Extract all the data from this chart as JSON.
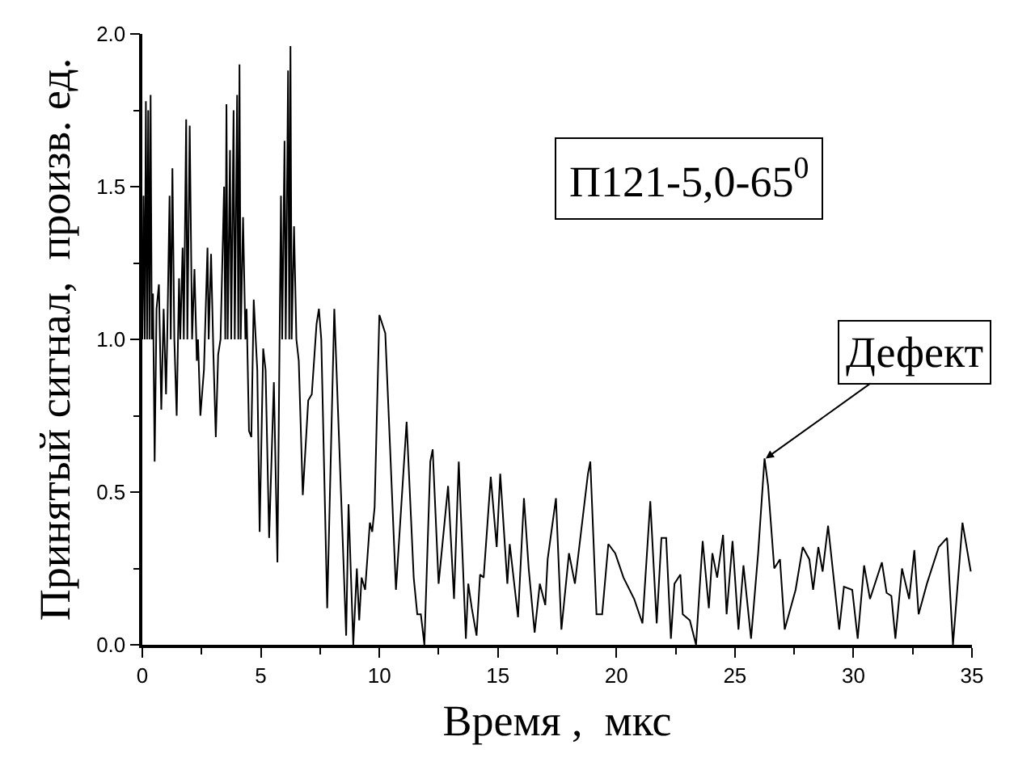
{
  "chart_data": {
    "type": "line",
    "xlabel": "Время ,  мкс",
    "ylabel": "Принятый сигнал,  произв. ед.",
    "xlim": [
      0,
      35
    ],
    "xticks": [
      0,
      5,
      10,
      15,
      20,
      25,
      30,
      35
    ],
    "ylim": [
      0,
      2.0
    ],
    "yticks": [
      {
        "value": 0,
        "label": "0.0"
      },
      {
        "value": 0.5,
        "label": "0.5"
      },
      {
        "value": 1.0,
        "label": "1.0"
      },
      {
        "value": 1.5,
        "label": "1.5"
      },
      {
        "value": 2.0,
        "label": "2.0"
      }
    ],
    "marker": "none",
    "line_style": "solid",
    "annotations": [
      "П121-5,0-65$^{0}$",
      {
        "text": "Дефект",
        "x": 26.3,
        "y": 0.61
      }
    ],
    "series": [
      {
        "color": "#000000",
        "x": [
          0,
          0.05,
          0.1,
          0.15,
          0.2,
          0.25,
          0.3,
          0.35,
          0.4,
          0.45,
          0.52,
          0.6,
          0.7,
          0.8,
          0.9,
          1.0,
          1.05,
          1.15,
          1.2,
          1.27,
          1.35,
          1.45,
          1.55,
          1.6,
          1.7,
          1.75,
          1.85,
          1.9,
          2.0,
          2.1,
          2.2,
          2.3,
          2.35,
          2.45,
          2.6,
          2.75,
          2.8,
          2.9,
          3.0,
          3.1,
          3.2,
          3.3,
          3.45,
          3.5,
          3.55,
          3.6,
          3.7,
          3.75,
          3.85,
          3.9,
          4.0,
          4.05,
          4.1,
          4.15,
          4.25,
          4.35,
          4.4,
          4.5,
          4.6,
          4.7,
          4.85,
          4.95,
          5.1,
          5.2,
          5.35,
          5.55,
          5.7,
          5.85,
          5.9,
          6.0,
          6.05,
          6.15,
          6.2,
          6.25,
          6.3,
          6.4,
          6.5,
          6.6,
          6.77,
          7.0,
          7.15,
          7.35,
          7.45,
          7.55,
          7.8,
          8.1,
          8.6,
          8.7,
          8.9,
          9.05,
          9.15,
          9.25,
          9.4,
          9.6,
          9.7,
          9.8,
          10.0,
          10.25,
          10.45,
          10.7,
          11.15,
          11.45,
          11.6,
          11.75,
          11.9,
          12.15,
          12.25,
          12.5,
          12.9,
          13.15,
          13.35,
          13.65,
          13.75,
          13.9,
          14.1,
          14.25,
          14.4,
          14.7,
          14.95,
          15.1,
          15.4,
          15.5,
          15.85,
          16.1,
          16.3,
          16.55,
          16.77,
          17.0,
          17.1,
          17.45,
          17.68,
          18.0,
          18.25,
          18.8,
          18.9,
          19.16,
          19.4,
          19.66,
          19.95,
          20.3,
          20.75,
          21.1,
          21.43,
          21.7,
          21.9,
          22.1,
          22.3,
          22.45,
          22.7,
          22.8,
          23.1,
          23.36,
          23.64,
          23.9,
          24.05,
          24.25,
          24.5,
          24.65,
          24.9,
          25.15,
          25.36,
          25.68,
          25.98,
          26.25,
          26.4,
          26.66,
          26.9,
          27.1,
          27.56,
          27.86,
          28.14,
          28.3,
          28.52,
          28.7,
          28.93,
          29.4,
          29.6,
          29.95,
          30.18,
          30.45,
          30.7,
          31.2,
          31.4,
          31.6,
          31.77,
          32.05,
          32.35,
          32.57,
          32.75,
          33.1,
          33.6,
          33.95,
          34.2,
          34.6,
          34.95
        ],
        "values": [
          1.0,
          1.47,
          1.0,
          1.78,
          1.0,
          1.75,
          1.0,
          1.8,
          1.0,
          1.15,
          0.6,
          1.1,
          1.18,
          0.77,
          1.1,
          0.82,
          1.0,
          1.47,
          1.0,
          1.56,
          1.0,
          0.75,
          1.2,
          1.0,
          1.3,
          1.0,
          1.72,
          1.0,
          1.7,
          1.0,
          1.23,
          0.93,
          1.0,
          0.75,
          0.9,
          1.3,
          1.0,
          1.28,
          0.95,
          0.68,
          0.95,
          1.0,
          1.5,
          1.0,
          1.77,
          1.0,
          1.62,
          1.0,
          1.75,
          1.0,
          1.8,
          1.0,
          1.9,
          1.0,
          1.4,
          1.0,
          1.1,
          0.7,
          0.68,
          1.13,
          0.9,
          0.37,
          0.97,
          0.9,
          0.35,
          0.86,
          0.27,
          1.47,
          1.0,
          1.65,
          1.0,
          1.88,
          1.0,
          1.96,
          1.0,
          1.37,
          1.0,
          0.93,
          0.49,
          0.8,
          0.82,
          1.05,
          1.1,
          1.0,
          0.12,
          1.1,
          0.03,
          0.46,
          0.0,
          0.25,
          0.08,
          0.22,
          0.18,
          0.4,
          0.37,
          0.45,
          1.08,
          1.02,
          0.65,
          0.18,
          0.73,
          0.22,
          0.1,
          0.1,
          0.0,
          0.6,
          0.64,
          0.2,
          0.52,
          0.15,
          0.6,
          0.02,
          0.2,
          0.12,
          0.03,
          0.23,
          0.22,
          0.55,
          0.32,
          0.56,
          0.2,
          0.33,
          0.09,
          0.48,
          0.25,
          0.04,
          0.2,
          0.13,
          0.28,
          0.48,
          0.05,
          0.3,
          0.2,
          0.56,
          0.6,
          0.1,
          0.1,
          0.33,
          0.3,
          0.22,
          0.15,
          0.07,
          0.47,
          0.07,
          0.35,
          0.35,
          0.02,
          0.2,
          0.23,
          0.1,
          0.08,
          0.0,
          0.34,
          0.12,
          0.3,
          0.22,
          0.36,
          0.1,
          0.34,
          0.05,
          0.26,
          0.02,
          0.3,
          0.61,
          0.52,
          0.25,
          0.28,
          0.05,
          0.18,
          0.32,
          0.28,
          0.18,
          0.32,
          0.24,
          0.39,
          0.05,
          0.19,
          0.18,
          0.02,
          0.26,
          0.15,
          0.27,
          0.17,
          0.16,
          0.02,
          0.25,
          0.15,
          0.31,
          0.1,
          0.2,
          0.32,
          0.35,
          0.0,
          0.4,
          0.24
        ]
      }
    ]
  }
}
